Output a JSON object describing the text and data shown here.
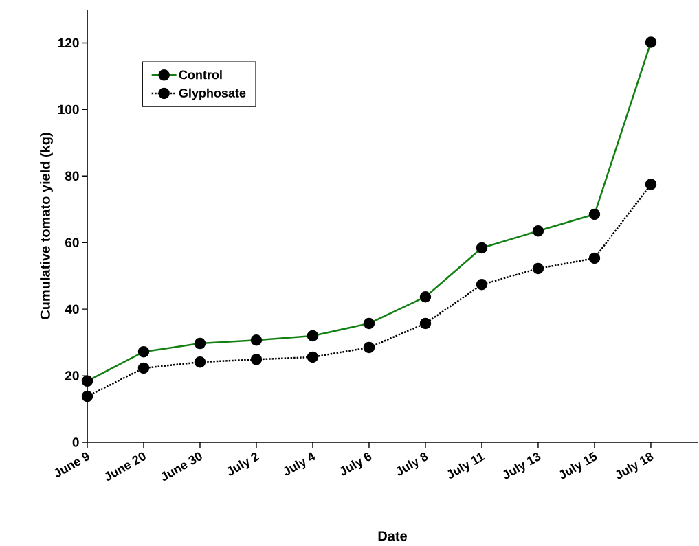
{
  "chart_data": {
    "type": "line",
    "xlabel": "Date",
    "ylabel": "Cumulative tomato yield (kg)",
    "categories": [
      "June 9",
      "June 20",
      "June 30",
      "July 2",
      "July 4",
      "July 6",
      "July 8",
      "July 11",
      "July 13",
      "July 15",
      "July 18"
    ],
    "series": [
      {
        "name": "Control",
        "color": "#138013",
        "line_style": "solid",
        "values": [
          18.4,
          27.2,
          29.7,
          30.7,
          32.0,
          35.7,
          43.7,
          58.4,
          63.5,
          68.5,
          120.2
        ]
      },
      {
        "name": "Glyphosate",
        "color": "#000000",
        "line_style": "dotted",
        "values": [
          13.8,
          22.3,
          24.1,
          24.9,
          25.6,
          28.5,
          35.7,
          47.4,
          52.2,
          55.3,
          77.5
        ]
      }
    ],
    "ylim": [
      0,
      130
    ],
    "yticks": [
      0,
      20,
      40,
      60,
      80,
      100,
      120
    ],
    "legend": "top left",
    "marker": "circle"
  }
}
